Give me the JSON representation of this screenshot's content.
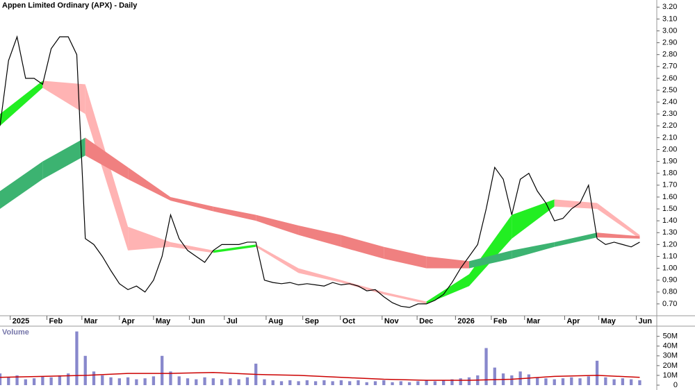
{
  "chart_data": [
    {
      "type": "line",
      "title": "Appen Limited Ordinary (APX) - Daily",
      "x": [
        0,
        1,
        2,
        3,
        4,
        5,
        6,
        7,
        8,
        9,
        10,
        11,
        12,
        13,
        14,
        15,
        16,
        17,
        18,
        19,
        20,
        21,
        22,
        23,
        24,
        25,
        26,
        27,
        28,
        29,
        30,
        31,
        32,
        33,
        34,
        35,
        36,
        37,
        38,
        39,
        40,
        41,
        42,
        43,
        44,
        45,
        46,
        47,
        48,
        49,
        50,
        51,
        52,
        53,
        54,
        55,
        56,
        57,
        58,
        59,
        60,
        61,
        62,
        63,
        64,
        65,
        66,
        67,
        68,
        69,
        70,
        71,
        72,
        73,
        74,
        75
      ],
      "series": [
        {
          "color": "#000000",
          "values": [
            2.2,
            2.75,
            2.95,
            2.6,
            2.6,
            2.55,
            2.85,
            2.95,
            2.95,
            2.8,
            1.25,
            1.2,
            1.1,
            0.98,
            0.87,
            0.82,
            0.85,
            0.8,
            0.9,
            1.1,
            1.45,
            1.25,
            1.15,
            1.1,
            1.05,
            1.15,
            1.2,
            1.2,
            1.2,
            1.22,
            1.22,
            0.9,
            0.88,
            0.87,
            0.88,
            0.86,
            0.87,
            0.86,
            0.85,
            0.88,
            0.86,
            0.87,
            0.85,
            0.81,
            0.82,
            0.76,
            0.71,
            0.68,
            0.67,
            0.7,
            0.7,
            0.73,
            0.78,
            0.88,
            1.0,
            1.1,
            1.2,
            1.5,
            1.85,
            1.75,
            1.45,
            1.75,
            1.8,
            1.65,
            1.55,
            1.4,
            1.42,
            1.5,
            1.55,
            1.7,
            1.25,
            1.2,
            1.22,
            1.2,
            1.18,
            1.22
          ]
        }
      ],
      "bands": [
        {
          "x": [
            0,
            5,
            10,
            15,
            20,
            25,
            30,
            35,
            40,
            45,
            50,
            55,
            60,
            65,
            70,
            75
          ],
          "upper": [
            2.3,
            2.58,
            2.55,
            1.35,
            1.22,
            1.15,
            1.2,
            1.0,
            0.9,
            0.8,
            0.72,
            0.95,
            1.45,
            1.58,
            1.55,
            1.28
          ],
          "lower": [
            2.2,
            2.52,
            2.3,
            1.15,
            1.18,
            1.13,
            1.18,
            0.96,
            0.88,
            0.78,
            0.7,
            0.85,
            1.25,
            1.52,
            1.5,
            1.25
          ],
          "up_color": "#22ee22",
          "down_color": "#ffb3b3"
        },
        {
          "x": [
            0,
            5,
            10,
            15,
            20,
            25,
            30,
            35,
            40,
            45,
            50,
            55,
            60,
            65,
            70,
            75
          ],
          "upper": [
            1.65,
            1.9,
            2.1,
            1.85,
            1.6,
            1.52,
            1.45,
            1.36,
            1.28,
            1.18,
            1.1,
            1.06,
            1.15,
            1.22,
            1.3,
            1.27
          ],
          "lower": [
            1.5,
            1.75,
            1.95,
            1.75,
            1.57,
            1.48,
            1.4,
            1.28,
            1.18,
            1.08,
            1.0,
            1.0,
            1.08,
            1.18,
            1.26,
            1.25
          ],
          "up_color": "#3cb371",
          "down_color": "#f08080"
        }
      ],
      "xlim": [
        0,
        77
      ],
      "xticks": [
        {
          "value": 1.2,
          "label": "2025"
        },
        {
          "value": 5.5,
          "label": "Feb"
        },
        {
          "value": 9.6,
          "label": "Mar"
        },
        {
          "value": 14,
          "label": "Apr"
        },
        {
          "value": 18,
          "label": "May"
        },
        {
          "value": 22.2,
          "label": "Jun"
        },
        {
          "value": 26.3,
          "label": "Jul"
        },
        {
          "value": 31.2,
          "label": "Aug"
        },
        {
          "value": 35.5,
          "label": "Sep"
        },
        {
          "value": 39.9,
          "label": "Oct"
        },
        {
          "value": 44.8,
          "label": "Nov"
        },
        {
          "value": 48.9,
          "label": "Dec"
        },
        {
          "value": 53.4,
          "label": "2026"
        },
        {
          "value": 57.6,
          "label": "Feb"
        },
        {
          "value": 61.5,
          "label": "Mar"
        },
        {
          "value": 66.2,
          "label": "Apr"
        },
        {
          "value": 70.2,
          "label": "May"
        },
        {
          "value": 74.6,
          "label": "Jun"
        }
      ],
      "ylim": [
        0.6,
        3.26
      ],
      "yticks": [
        {
          "value": 0.7,
          "label": "0.70"
        },
        {
          "value": 0.8,
          "label": "0.80"
        },
        {
          "value": 0.9,
          "label": "0.90"
        },
        {
          "value": 1.0,
          "label": "1.00"
        },
        {
          "value": 1.1,
          "label": "1.10"
        },
        {
          "value": 1.2,
          "label": "1.20"
        },
        {
          "value": 1.3,
          "label": "1.30"
        },
        {
          "value": 1.4,
          "label": "1.40"
        },
        {
          "value": 1.5,
          "label": "1.50"
        },
        {
          "value": 1.6,
          "label": "1.60"
        },
        {
          "value": 1.7,
          "label": "1.70"
        },
        {
          "value": 1.8,
          "label": "1.80"
        },
        {
          "value": 1.9,
          "label": "1.90"
        },
        {
          "value": 2.0,
          "label": "2.00"
        },
        {
          "value": 2.1,
          "label": "2.10"
        },
        {
          "value": 2.2,
          "label": "2.20"
        },
        {
          "value": 2.3,
          "label": "2.30"
        },
        {
          "value": 2.4,
          "label": "2.40"
        },
        {
          "value": 2.5,
          "label": "2.50"
        },
        {
          "value": 2.6,
          "label": "2.60"
        },
        {
          "value": 2.7,
          "label": "2.70"
        },
        {
          "value": 2.8,
          "label": "2.80"
        },
        {
          "value": 2.9,
          "label": "2.90"
        },
        {
          "value": 3.0,
          "label": "3.00"
        },
        {
          "value": 3.1,
          "label": "3.10"
        },
        {
          "value": 3.2,
          "label": "3.20"
        }
      ]
    },
    {
      "type": "bar",
      "title": "Volume",
      "x": [
        0,
        1,
        2,
        3,
        4,
        5,
        6,
        7,
        8,
        9,
        10,
        11,
        12,
        13,
        14,
        15,
        16,
        17,
        18,
        19,
        20,
        21,
        22,
        23,
        24,
        25,
        26,
        27,
        28,
        29,
        30,
        31,
        32,
        33,
        34,
        35,
        36,
        37,
        38,
        39,
        40,
        41,
        42,
        43,
        44,
        45,
        46,
        47,
        48,
        49,
        50,
        51,
        52,
        53,
        54,
        55,
        56,
        57,
        58,
        59,
        60,
        61,
        62,
        63,
        64,
        65,
        66,
        67,
        68,
        69,
        70,
        71,
        72,
        73,
        74,
        75
      ],
      "values": [
        12,
        8,
        10,
        6,
        7,
        9,
        8,
        10,
        12,
        55,
        30,
        14,
        10,
        8,
        7,
        8,
        6,
        7,
        9,
        30,
        14,
        9,
        7,
        6,
        8,
        7,
        6,
        7,
        6,
        8,
        22,
        6,
        5,
        4,
        5,
        4,
        5,
        4,
        5,
        4,
        5,
        4,
        5,
        3,
        4,
        5,
        3,
        4,
        3,
        4,
        5,
        4,
        5,
        6,
        7,
        8,
        10,
        38,
        18,
        12,
        10,
        14,
        11,
        8,
        7,
        6,
        7,
        8,
        7,
        9,
        25,
        8,
        6,
        7,
        6,
        5
      ],
      "color": "#8888cc",
      "ma": {
        "x": [
          0,
          5,
          10,
          15,
          20,
          25,
          30,
          35,
          40,
          45,
          50,
          55,
          60,
          65,
          70,
          75
        ],
        "values": [
          8,
          9,
          10,
          12,
          12,
          13,
          11,
          10,
          8,
          6,
          5,
          5,
          6,
          9,
          10,
          8
        ],
        "color": "#cc0000"
      },
      "xlim": [
        0,
        77
      ],
      "ylim": [
        0,
        59
      ],
      "yticks": [
        0,
        {
          "value": 10,
          "label": "10M"
        },
        {
          "value": 20,
          "label": "20M"
        },
        {
          "value": 30,
          "label": "30M"
        },
        {
          "value": 40,
          "label": "40M"
        },
        {
          "value": 50,
          "label": "50M"
        }
      ]
    }
  ]
}
